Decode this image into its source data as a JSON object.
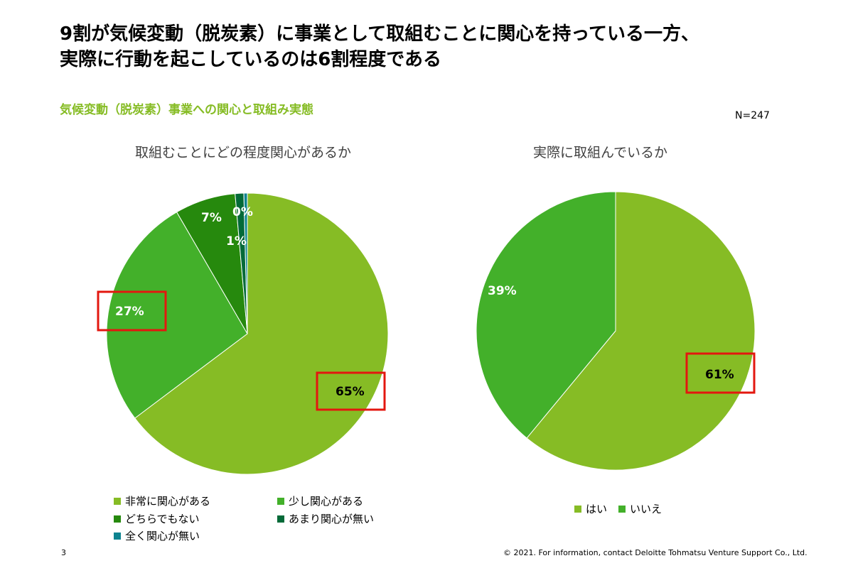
{
  "slide": {
    "title_line1": "9割が気候変動（脱炭素）に事業として取組むことに関心を持っている一方、",
    "title_line2": "実際に行動を起こしているのは6割程度である",
    "subtitle": "気候変動（脱炭素）事業への関心と取組み実態",
    "sample_size": "N=247",
    "page_number": "3",
    "footer": "© 2021. For information, contact Deloitte Tohmatsu Venture Support Co., Ltd."
  },
  "colors": {
    "light_green": "#86bc25",
    "mid_green": "#43b02a",
    "dark_green": "#26890d",
    "darker_green": "#046a38",
    "teal": "#0d8390",
    "highlight_red": "#e3170f",
    "subtitle_green": "#86bc25"
  },
  "chart_data": [
    {
      "type": "pie",
      "title": "取組むことにどの程度関心があるか",
      "slices": [
        {
          "label": "非常に関心がある",
          "value": 65,
          "display": "65%",
          "color": "#86bc25",
          "highlighted": true
        },
        {
          "label": "少し関心がある",
          "value": 27,
          "display": "27%",
          "color": "#43b02a",
          "highlighted": true
        },
        {
          "label": "どちらでもない",
          "value": 7,
          "display": "7%",
          "color": "#26890d",
          "highlighted": false
        },
        {
          "label": "あまり関心が無い",
          "value": 1,
          "display": "1%",
          "color": "#046a38",
          "highlighted": false
        },
        {
          "label": "全く関心が無い",
          "value": 0.4,
          "display": "0%",
          "color": "#0d8390",
          "highlighted": false
        }
      ],
      "legend_position": "bottom"
    },
    {
      "type": "pie",
      "title": "実際に取組んでいるか",
      "slices": [
        {
          "label": "はい",
          "value": 61,
          "display": "61%",
          "color": "#86bc25",
          "highlighted": true
        },
        {
          "label": "いいえ",
          "value": 39,
          "display": "39%",
          "color": "#43b02a",
          "highlighted": false
        }
      ],
      "legend_position": "bottom"
    }
  ]
}
